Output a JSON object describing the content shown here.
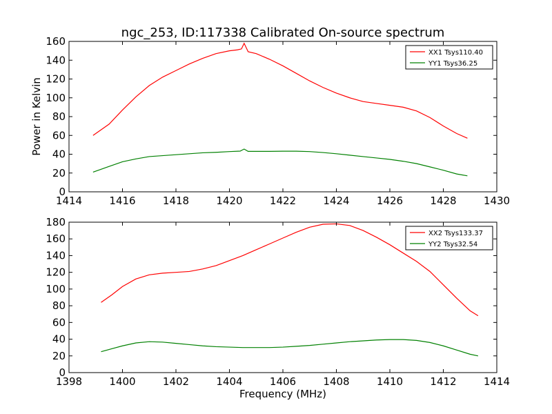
{
  "figure": {
    "title": "ngc_253, ID:117338 Calibrated On-source spectrum"
  },
  "chart_data": [
    {
      "type": "line",
      "title": "ngc_253, ID:117338 Calibrated On-source spectrum",
      "xlabel": "",
      "ylabel": "Power in Kelvin",
      "xlim": [
        1414,
        1430
      ],
      "ylim": [
        0,
        160
      ],
      "xticks": [
        1414,
        1416,
        1418,
        1420,
        1422,
        1424,
        1426,
        1428,
        1430
      ],
      "yticks": [
        0,
        20,
        40,
        60,
        80,
        100,
        120,
        140,
        160
      ],
      "grid": false,
      "legend_position": "top-right",
      "series": [
        {
          "name": "XX1 Tsys110.40",
          "color": "#ff0000",
          "x": [
            1414.9,
            1415.5,
            1416.0,
            1416.5,
            1417.0,
            1417.5,
            1418.0,
            1418.5,
            1419.0,
            1419.5,
            1420.0,
            1420.3,
            1420.45,
            1420.55,
            1420.7,
            1421.0,
            1421.5,
            1422.0,
            1422.5,
            1423.0,
            1423.5,
            1424.0,
            1424.5,
            1425.0,
            1425.5,
            1426.0,
            1426.5,
            1427.0,
            1427.5,
            1428.0,
            1428.5,
            1428.9
          ],
          "y": [
            60,
            72,
            87,
            101,
            113,
            122,
            129,
            136,
            142,
            147,
            150,
            151,
            152,
            158,
            149,
            147,
            141,
            134,
            126,
            118,
            111,
            105,
            100,
            96,
            94,
            92,
            90,
            86,
            79,
            70,
            62,
            57
          ]
        },
        {
          "name": "YY1 Tsys36.25",
          "color": "#008000",
          "x": [
            1414.9,
            1415.5,
            1416.0,
            1416.5,
            1417.0,
            1417.5,
            1418.0,
            1418.5,
            1419.0,
            1419.5,
            1420.0,
            1420.4,
            1420.55,
            1420.7,
            1421.0,
            1421.5,
            1422.0,
            1422.5,
            1423.0,
            1423.5,
            1424.0,
            1424.5,
            1425.0,
            1425.5,
            1426.0,
            1426.5,
            1427.0,
            1427.5,
            1428.0,
            1428.5,
            1428.9
          ],
          "y": [
            21,
            27,
            32,
            35,
            37.5,
            38.5,
            39.5,
            40.5,
            41.5,
            42,
            42.8,
            43.3,
            45.5,
            43,
            43,
            43,
            43.2,
            43.2,
            42.8,
            41.8,
            40.5,
            39,
            37.5,
            36,
            34.5,
            32.5,
            30,
            26.5,
            23,
            19,
            17
          ]
        }
      ]
    },
    {
      "type": "line",
      "title": "",
      "xlabel": "Frequency (MHz)",
      "ylabel": "",
      "xlim": [
        1398,
        1414
      ],
      "ylim": [
        0,
        180
      ],
      "xticks": [
        1398,
        1400,
        1402,
        1404,
        1406,
        1408,
        1410,
        1412,
        1414
      ],
      "yticks": [
        0,
        20,
        40,
        60,
        80,
        100,
        120,
        140,
        160,
        180
      ],
      "grid": false,
      "legend_position": "top-right",
      "series": [
        {
          "name": "XX2 Tsys133.37",
          "color": "#ff0000",
          "x": [
            1399.2,
            1399.6,
            1400.0,
            1400.5,
            1401.0,
            1401.5,
            1402.0,
            1402.5,
            1403.0,
            1403.5,
            1404.0,
            1404.5,
            1405.0,
            1405.5,
            1406.0,
            1406.5,
            1407.0,
            1407.5,
            1408.0,
            1408.5,
            1409.0,
            1409.5,
            1410.0,
            1410.5,
            1411.0,
            1411.5,
            1412.0,
            1412.5,
            1413.0,
            1413.3
          ],
          "y": [
            84,
            93,
            103,
            112,
            117,
            119,
            120,
            121,
            124,
            128,
            134,
            140,
            147,
            154,
            161,
            168,
            174,
            177.5,
            178,
            176,
            170,
            162,
            153,
            143,
            133,
            121,
            105,
            89,
            74,
            68
          ]
        },
        {
          "name": "YY2 Tsys32.54",
          "color": "#008000",
          "x": [
            1399.2,
            1399.6,
            1400.0,
            1400.5,
            1401.0,
            1401.5,
            1402.0,
            1402.5,
            1403.0,
            1403.5,
            1404.0,
            1404.5,
            1405.0,
            1405.5,
            1406.0,
            1406.5,
            1407.0,
            1407.5,
            1408.0,
            1408.5,
            1409.0,
            1409.5,
            1410.0,
            1410.5,
            1411.0,
            1411.5,
            1412.0,
            1412.5,
            1413.0,
            1413.3
          ],
          "y": [
            25,
            28.5,
            32,
            35.5,
            37,
            36.5,
            35,
            33.5,
            32,
            31,
            30.5,
            30,
            30,
            30,
            30.5,
            31.5,
            32.5,
            34,
            35.5,
            37,
            38,
            39,
            39.5,
            39.5,
            38.5,
            36,
            32,
            27,
            22,
            20
          ]
        }
      ]
    }
  ]
}
